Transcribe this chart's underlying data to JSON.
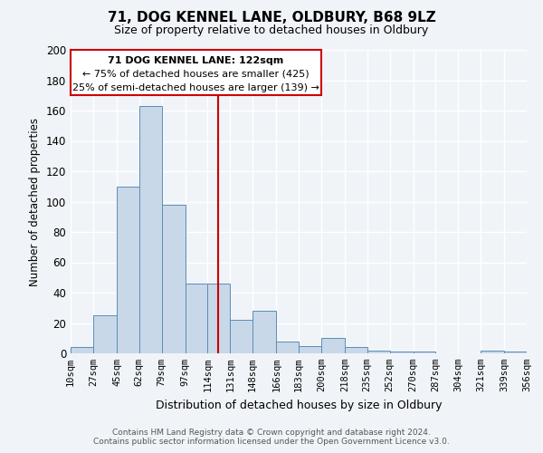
{
  "title": "71, DOG KENNEL LANE, OLDBURY, B68 9LZ",
  "subtitle": "Size of property relative to detached houses in Oldbury",
  "xlabel": "Distribution of detached houses by size in Oldbury",
  "ylabel": "Number of detached properties",
  "bar_color": "#c8d8e8",
  "bar_edge_color": "#5b8db8",
  "background_color": "#f0f4f8",
  "grid_color": "#ffffff",
  "bins": [
    10,
    27,
    45,
    62,
    79,
    97,
    114,
    131,
    148,
    166,
    183,
    200,
    218,
    235,
    252,
    270,
    287,
    304,
    321,
    339,
    356
  ],
  "bin_labels": [
    "10sqm",
    "27sqm",
    "45sqm",
    "62sqm",
    "79sqm",
    "97sqm",
    "114sqm",
    "131sqm",
    "148sqm",
    "166sqm",
    "183sqm",
    "200sqm",
    "218sqm",
    "235sqm",
    "252sqm",
    "270sqm",
    "287sqm",
    "304sqm",
    "321sqm",
    "339sqm",
    "356sqm"
  ],
  "counts": [
    4,
    25,
    110,
    163,
    98,
    46,
    46,
    22,
    28,
    8,
    5,
    10,
    4,
    2,
    1,
    1,
    0,
    0,
    2,
    1
  ],
  "vline_x": 122,
  "vline_color": "#cc0000",
  "annotation_title": "71 DOG KENNEL LANE: 122sqm",
  "annotation_line1": "← 75% of detached houses are smaller (425)",
  "annotation_line2": "25% of semi-detached houses are larger (139) →",
  "annotation_box_color": "#cc0000",
  "ylim": [
    0,
    200
  ],
  "yticks": [
    0,
    20,
    40,
    60,
    80,
    100,
    120,
    140,
    160,
    180,
    200
  ],
  "footer_line1": "Contains HM Land Registry data © Crown copyright and database right 2024.",
  "footer_line2": "Contains public sector information licensed under the Open Government Licence v3.0."
}
